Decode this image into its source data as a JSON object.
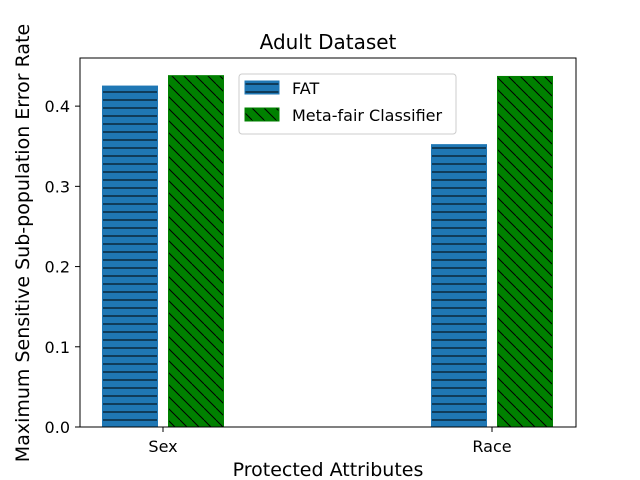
{
  "chart_data": {
    "type": "bar",
    "title": "Adult Dataset",
    "xlabel": "Protected Attributes",
    "ylabel": "Maximum Sensitive Sub-population Error Rate",
    "categories": [
      "Sex",
      "Race"
    ],
    "series": [
      {
        "name": "FAT",
        "values": [
          0.425,
          0.352
        ],
        "color": "#1f77b4",
        "hatch": "horizontal"
      },
      {
        "name": "Meta-fair Classifier",
        "values": [
          0.438,
          0.437
        ],
        "color": "#008000",
        "hatch": "diagonal"
      }
    ],
    "ylim": [
      0,
      0.46
    ],
    "yticks": [
      "0.0",
      "0.1",
      "0.2",
      "0.3",
      "0.4"
    ],
    "ytick_values": [
      0,
      0.1,
      0.2,
      0.3,
      0.4
    ],
    "grid": false,
    "legend_position": "top-center"
  }
}
